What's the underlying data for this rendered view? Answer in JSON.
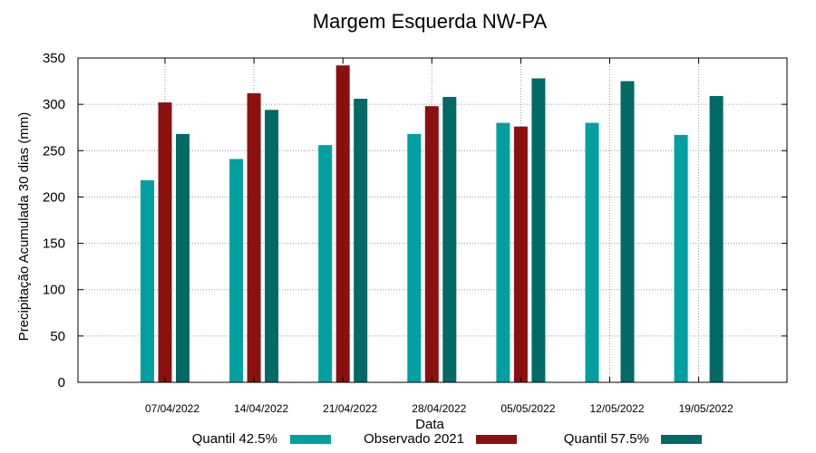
{
  "chart_data": {
    "type": "bar",
    "title": "Margem Esquerda NW-PA",
    "xlabel": "Data",
    "ylabel": "Precipitação Acumulada 30 dias (mm)",
    "ylim": [
      0,
      350
    ],
    "yticks": [
      0,
      50,
      100,
      150,
      200,
      250,
      300,
      350
    ],
    "grid": true,
    "legend_position": "bottom",
    "categories": [
      "07/04/2022",
      "14/04/2022",
      "21/04/2022",
      "28/04/2022",
      "05/05/2022",
      "12/05/2022",
      "19/05/2022"
    ],
    "series": [
      {
        "name": "Quantil 42.5%",
        "color": "#00A0A0",
        "values": [
          218,
          241,
          256,
          268,
          280,
          280,
          267
        ]
      },
      {
        "name": "Observado 2021",
        "color": "#8B1010",
        "values": [
          302,
          312,
          342,
          298,
          276,
          null,
          null
        ]
      },
      {
        "name": "Quantil 57.5%",
        "color": "#006A66",
        "values": [
          268,
          294,
          306,
          308,
          328,
          325,
          309
        ]
      }
    ]
  }
}
